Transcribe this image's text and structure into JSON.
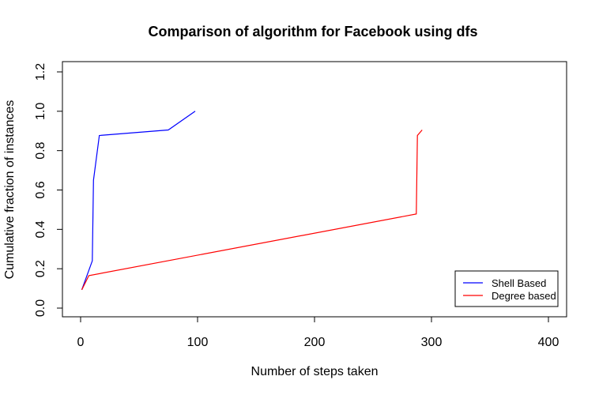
{
  "chart_data": {
    "type": "line",
    "title": "Comparison of algorithm for Facebook using dfs",
    "xlabel": "Number of steps taken",
    "ylabel": "Cumulative fraction of instances",
    "xlim": [
      0,
      400
    ],
    "ylim": [
      0,
      1.2
    ],
    "x_ticks": [
      "0",
      "100",
      "200",
      "300",
      "400"
    ],
    "y_ticks": [
      "0.0",
      "0.2",
      "0.4",
      "0.6",
      "0.8",
      "1.0",
      "1.2"
    ],
    "x_tick_values": [
      0,
      100,
      200,
      300,
      400
    ],
    "y_tick_values": [
      0,
      0.2,
      0.4,
      0.6,
      0.8,
      1.0,
      1.2
    ],
    "grid": false,
    "legend_position": "bottom-right",
    "series": [
      {
        "name": "Shell Based",
        "color": "#0000ff",
        "x": [
          1,
          10,
          11,
          16,
          75,
          98
        ],
        "y": [
          0.093,
          0.24,
          0.65,
          0.877,
          0.905,
          1.0
        ]
      },
      {
        "name": "Degree based",
        "color": "#ff0000",
        "x": [
          1,
          7,
          287,
          288,
          292
        ],
        "y": [
          0.093,
          0.165,
          0.478,
          0.877,
          0.905
        ]
      }
    ]
  }
}
